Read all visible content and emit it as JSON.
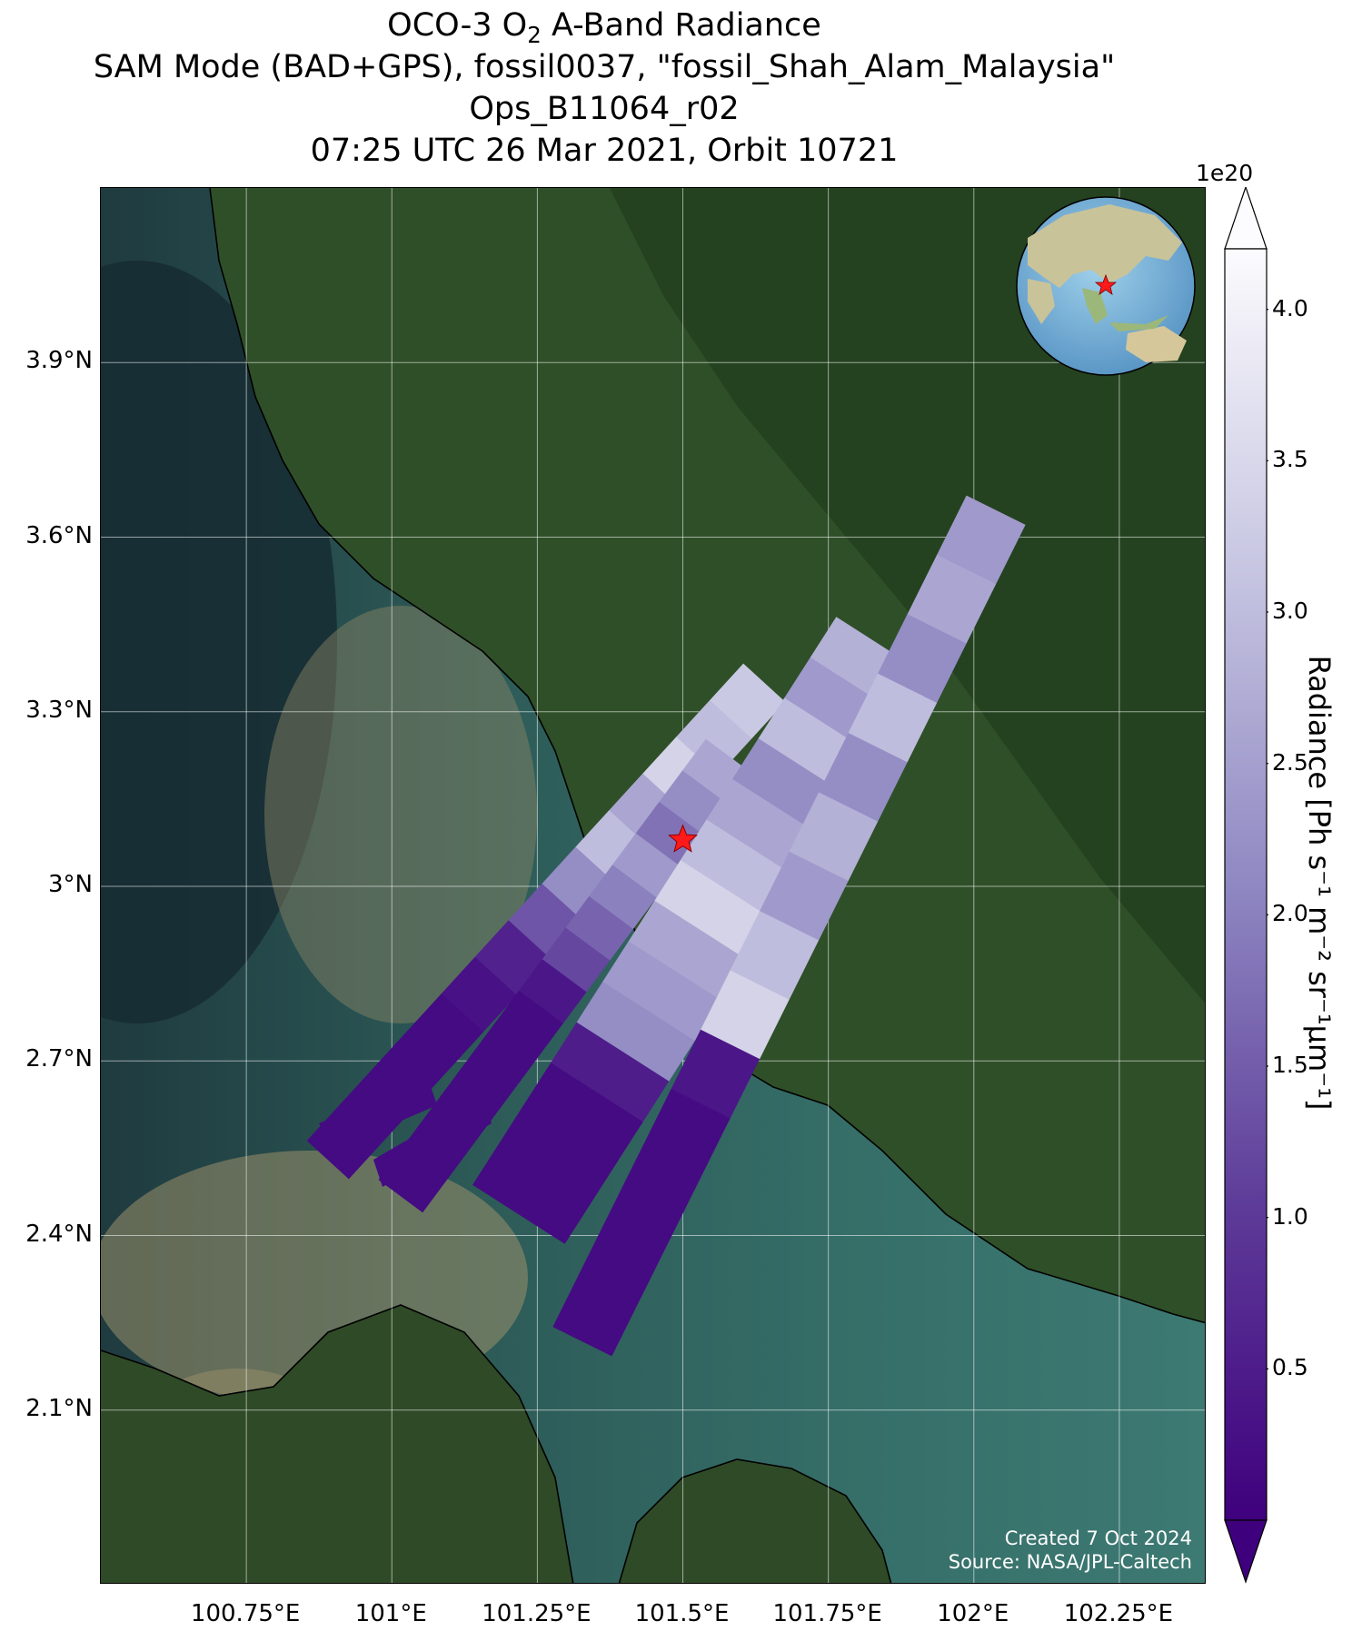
{
  "title": {
    "line1_pre": "OCO-3 O",
    "line1_sub": "2",
    "line1_post": " A-Band Radiance",
    "line2": "SAM Mode (BAD+GPS), fossil0037, \"fossil_Shah_Alam_Malaysia\"",
    "line3": "Ops_B11064_r02",
    "line4": "07:25 UTC 26 Mar 2021, Orbit 10721"
  },
  "map": {
    "lon_range": [
      100.5,
      102.4
    ],
    "lat_range": [
      1.8,
      4.2
    ],
    "lat_ticks": [
      {
        "value": 3.9,
        "label": "3.9°N"
      },
      {
        "value": 3.6,
        "label": "3.6°N"
      },
      {
        "value": 3.3,
        "label": "3.3°N"
      },
      {
        "value": 3.0,
        "label": "3°N"
      },
      {
        "value": 2.7,
        "label": "2.7°N"
      },
      {
        "value": 2.4,
        "label": "2.4°N"
      },
      {
        "value": 2.1,
        "label": "2.1°N"
      }
    ],
    "lon_ticks": [
      {
        "value": 100.75,
        "label": "100.75°E"
      },
      {
        "value": 101.0,
        "label": "101°E"
      },
      {
        "value": 101.25,
        "label": "101.25°E"
      },
      {
        "value": 101.5,
        "label": "101.5°E"
      },
      {
        "value": 101.75,
        "label": "101.75°E"
      },
      {
        "value": 102.0,
        "label": "102°E"
      },
      {
        "value": 102.25,
        "label": "102.25°E"
      }
    ],
    "target": {
      "name": "fossil_Shah_Alam_Malaysia",
      "lon": 101.5,
      "lat": 3.08,
      "marker": "red-star"
    },
    "swaths": [
      {
        "name": "swath-1",
        "low_from_lon": 101.3,
        "values": [
          3.2,
          3.0,
          3.4,
          2.6,
          3.0,
          2.2,
          1.4,
          0.6,
          0.3,
          0.2,
          0.2,
          0.2,
          0.2
        ]
      },
      {
        "name": "swath-2",
        "low_from_lon": 101.3,
        "values": [
          2.6,
          2.2,
          1.8,
          2.4,
          2.0,
          1.6,
          1.2,
          0.4,
          0.2,
          0.2,
          0.2,
          0.2,
          0.2,
          0.2
        ]
      },
      {
        "name": "swath-3",
        "low_from_lon": 101.45,
        "values": [
          2.8,
          2.4,
          3.0,
          2.2,
          2.6,
          3.0,
          3.4,
          2.6,
          2.4,
          2.2,
          0.5,
          0.2,
          0.2,
          0.2
        ]
      },
      {
        "name": "swath-4",
        "low_from_lon": 101.6,
        "values": [
          2.4,
          2.6,
          2.2,
          3.0,
          2.2,
          2.8,
          2.4,
          3.0,
          3.4,
          0.4,
          0.2,
          0.2,
          0.2,
          0.2
        ]
      }
    ]
  },
  "colorbar": {
    "exponent": "1e20",
    "colormap": "Purples_r",
    "color_min": "#3f007d",
    "color_max": "#fcfbfd",
    "ticks": [
      4.0,
      3.5,
      3.0,
      2.5,
      2.0,
      1.5,
      1.0,
      0.5
    ],
    "tick_labels": [
      "4.0",
      "3.5",
      "3.0",
      "2.5",
      "2.0",
      "1.5",
      "1.0",
      "0.5"
    ],
    "range": [
      0.0,
      4.2
    ],
    "label": "Radiance [Ph s⁻¹ m⁻² sr⁻¹μm⁻¹]"
  },
  "credits": {
    "line1": "Created 7 Oct 2024",
    "line2": "Source: NASA/JPL-Caltech"
  }
}
